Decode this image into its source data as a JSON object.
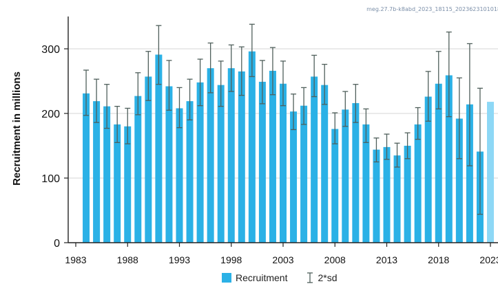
{
  "stamp": "meg.27.7b-k8abd_2023_18115_2023623101018",
  "chart_data": {
    "type": "bar",
    "ylabel": "Recruitment in millions",
    "xlabel": "",
    "ylim": [
      0,
      350
    ],
    "yticks": [
      0,
      100,
      200,
      300
    ],
    "xticks": [
      "1983",
      "1988",
      "1993",
      "1998",
      "2003",
      "2008",
      "2013",
      "2018",
      "2023"
    ],
    "grid": "horizontal",
    "colors": {
      "recruitment": "#2bb1e6",
      "projection": "#8dd8f6",
      "errorbar": "#4f5f5b"
    },
    "series": [
      {
        "name": "Recruitment",
        "x": [
          1984,
          1985,
          1986,
          1987,
          1988,
          1989,
          1990,
          1991,
          1992,
          1993,
          1994,
          1995,
          1996,
          1997,
          1998,
          1999,
          2000,
          2001,
          2002,
          2003,
          2004,
          2005,
          2006,
          2007,
          2008,
          2009,
          2010,
          2011,
          2012,
          2013,
          2014,
          2015,
          2016,
          2017,
          2018,
          2019,
          2020,
          2021,
          2022
        ],
        "values": [
          231,
          219,
          211,
          183,
          180,
          227,
          257,
          291,
          242,
          208,
          219,
          248,
          270,
          244,
          270,
          265,
          296,
          249,
          266,
          246,
          203,
          212,
          257,
          244,
          176,
          206,
          216,
          183,
          144,
          148,
          135,
          150,
          183,
          226,
          246,
          259,
          192,
          214,
          141
        ],
        "lower": [
          197,
          186,
          177,
          155,
          153,
          198,
          220,
          245,
          205,
          178,
          190,
          212,
          232,
          211,
          234,
          228,
          257,
          215,
          229,
          212,
          175,
          183,
          226,
          214,
          153,
          180,
          186,
          155,
          125,
          129,
          117,
          130,
          160,
          188,
          207,
          195,
          130,
          119,
          44
        ],
        "upper": [
          267,
          253,
          245,
          211,
          208,
          263,
          296,
          336,
          282,
          240,
          253,
          284,
          309,
          281,
          306,
          303,
          338,
          282,
          302,
          281,
          230,
          240,
          290,
          276,
          201,
          234,
          245,
          207,
          162,
          168,
          154,
          170,
          209,
          265,
          296,
          326,
          255,
          308,
          239
        ]
      },
      {
        "name": "",
        "x": [
          2023
        ],
        "values": [
          218
        ],
        "projection": true
      }
    ],
    "legend": {
      "items": [
        "Recruitment",
        "2*sd"
      ],
      "position": "bottom"
    }
  }
}
